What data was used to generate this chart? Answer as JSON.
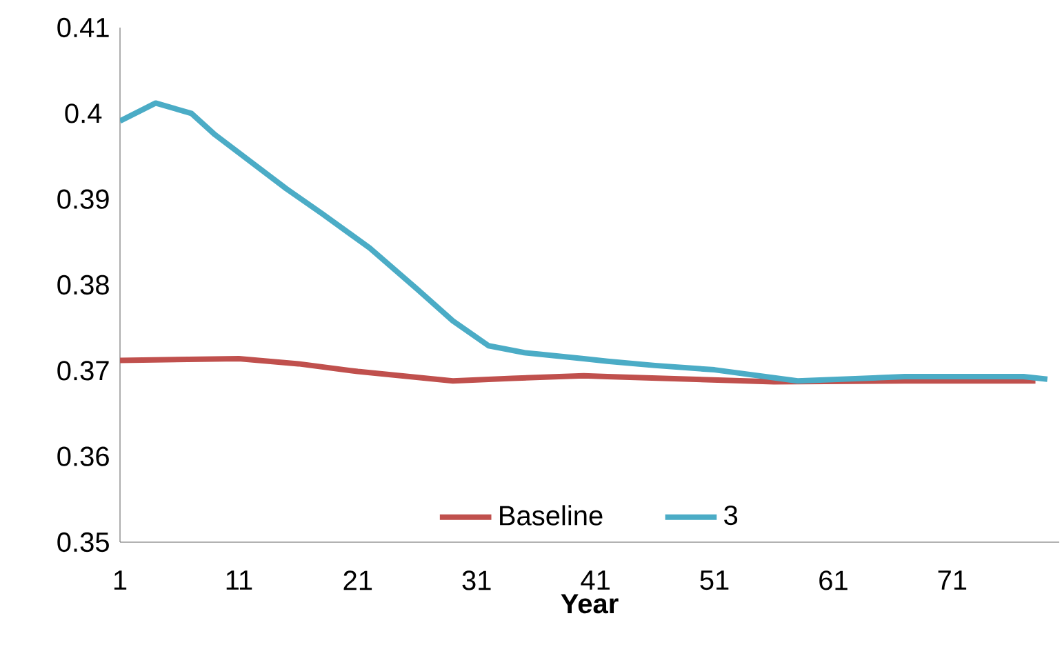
{
  "chart_data": {
    "type": "line",
    "xlabel": "Year",
    "xlim": [
      1,
      80
    ],
    "xticks": [
      1,
      11,
      21,
      31,
      41,
      51,
      61,
      71
    ],
    "ylim": [
      0.35,
      0.41
    ],
    "yticks": [
      0.35,
      0.36,
      0.37,
      0.38,
      0.39,
      0.4,
      0.41
    ],
    "grid": false,
    "legend": "bottom",
    "line_style": "solid",
    "marker": "none",
    "series": [
      {
        "name": "Baseline",
        "color": "#c0504d",
        "x": [
          1,
          11,
          16,
          21,
          29,
          34,
          40,
          42,
          56,
          67,
          78
        ],
        "values": [
          0.3712,
          0.3714,
          0.3708,
          0.3699,
          0.3688,
          0.3691,
          0.3694,
          0.3693,
          0.3687,
          0.3688,
          0.3688
        ]
      },
      {
        "name": "3",
        "color": "#4bacc6",
        "x": [
          1,
          4,
          7,
          9,
          15,
          18,
          22,
          26,
          29,
          32,
          35,
          40,
          42,
          46,
          51,
          58,
          67,
          77,
          79
        ],
        "values": [
          0.3991,
          0.4012,
          0.4,
          0.3975,
          0.3912,
          0.3883,
          0.3843,
          0.3795,
          0.3758,
          0.3729,
          0.3721,
          0.3714,
          0.3711,
          0.3706,
          0.3701,
          0.3688,
          0.3693,
          0.3693,
          0.369
        ]
      }
    ]
  }
}
